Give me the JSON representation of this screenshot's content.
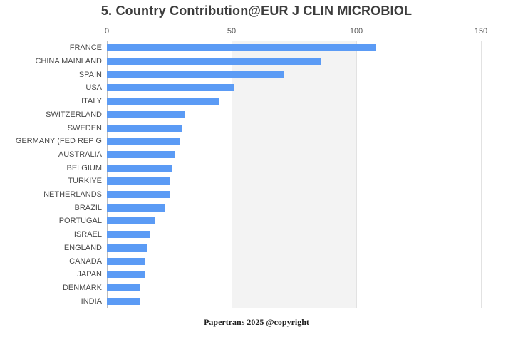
{
  "title": "5. Country Contribution@EUR J CLIN MICROBIOL",
  "footer": "Papertrans 2025 @copyright",
  "chart_data": {
    "type": "bar",
    "orientation": "horizontal",
    "title": "5. Country Contribution@EUR J CLIN MICROBIOL",
    "categories": [
      "FRANCE",
      "CHINA MAINLAND",
      "SPAIN",
      "USA",
      "ITALY",
      "SWITZERLAND",
      "SWEDEN",
      "GERMANY (FED REP G",
      "AUSTRALIA",
      "BELGIUM",
      "TURKIYE",
      "NETHERLANDS",
      "BRAZIL",
      "PORTUGAL",
      "ISRAEL",
      "ENGLAND",
      "CANADA",
      "JAPAN",
      "DENMARK",
      "INDIA"
    ],
    "values": [
      108,
      86,
      71,
      51,
      45,
      31,
      30,
      29,
      27,
      26,
      25,
      25,
      23,
      19,
      17,
      16,
      15,
      15,
      13,
      13
    ],
    "xlabel": "",
    "ylabel": "",
    "xlim": [
      0,
      150
    ],
    "xticks": [
      0,
      50,
      100,
      150
    ],
    "bar_color": "#5b9bf5",
    "grid": true,
    "grid_band": [
      50,
      100
    ],
    "legend": false,
    "caption": "Papertrans 2025 @copyright"
  }
}
